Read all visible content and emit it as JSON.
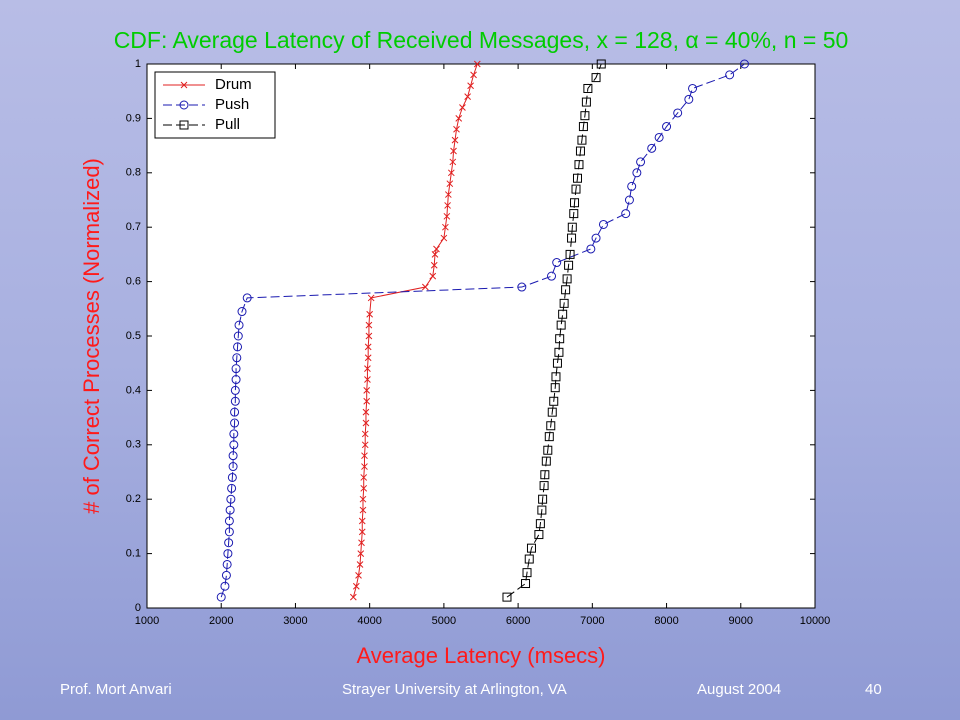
{
  "chart_data": {
    "type": "line",
    "title": "CDF: Average Latency of Received Messages, x = 128, α = 40%, n = 50",
    "xlabel": "Average Latency (msecs)",
    "ylabel": "# of Correct Processes (Normalized)",
    "xlim": [
      1000,
      10000
    ],
    "ylim": [
      0,
      1
    ],
    "xticks": [
      1000,
      2000,
      3000,
      4000,
      5000,
      6000,
      7000,
      8000,
      9000,
      10000
    ],
    "yticks": [
      0,
      0.1,
      0.2,
      0.3,
      0.4,
      0.5,
      0.6,
      0.7,
      0.8,
      0.9,
      1
    ],
    "legend": "upper left",
    "series": [
      {
        "name": "Drum",
        "color": "#e02020",
        "marker": "x",
        "linestyle": "solid",
        "x": [
          3780,
          3820,
          3850,
          3870,
          3880,
          3890,
          3900,
          3900,
          3910,
          3910,
          3920,
          3920,
          3930,
          3930,
          3940,
          3940,
          3950,
          3950,
          3960,
          3960,
          3970,
          3970,
          3980,
          3980,
          3990,
          3990,
          4000,
          4020,
          4750,
          4850,
          4870,
          4880,
          4900,
          5000,
          5020,
          5040,
          5050,
          5060,
          5080,
          5100,
          5120,
          5130,
          5150,
          5170,
          5200,
          5250,
          5320,
          5360,
          5400,
          5450
        ],
        "values": [
          0.02,
          0.04,
          0.06,
          0.08,
          0.1,
          0.12,
          0.14,
          0.16,
          0.18,
          0.2,
          0.22,
          0.24,
          0.26,
          0.28,
          0.3,
          0.32,
          0.34,
          0.36,
          0.38,
          0.4,
          0.42,
          0.44,
          0.46,
          0.48,
          0.5,
          0.52,
          0.54,
          0.57,
          0.59,
          0.61,
          0.63,
          0.65,
          0.66,
          0.68,
          0.7,
          0.72,
          0.74,
          0.76,
          0.78,
          0.8,
          0.82,
          0.84,
          0.86,
          0.88,
          0.9,
          0.92,
          0.94,
          0.96,
          0.98,
          1
        ]
      },
      {
        "name": "Push",
        "color": "#1a1ab0",
        "marker": "o",
        "linestyle": "dashed",
        "x": [
          2000,
          2050,
          2070,
          2080,
          2090,
          2100,
          2110,
          2110,
          2120,
          2130,
          2140,
          2150,
          2160,
          2160,
          2170,
          2170,
          2180,
          2180,
          2190,
          2190,
          2200,
          2200,
          2210,
          2220,
          2230,
          2240,
          2280,
          2350,
          6050,
          6450,
          6520,
          6980,
          7050,
          7150,
          7450,
          7500,
          7530,
          7600,
          7650,
          7800,
          7900,
          8000,
          8150,
          8300,
          8350,
          8850,
          9050
        ],
        "values": [
          0.02,
          0.04,
          0.06,
          0.08,
          0.1,
          0.12,
          0.14,
          0.16,
          0.18,
          0.2,
          0.22,
          0.24,
          0.26,
          0.28,
          0.3,
          0.32,
          0.34,
          0.36,
          0.38,
          0.4,
          0.42,
          0.44,
          0.46,
          0.48,
          0.5,
          0.52,
          0.545,
          0.57,
          0.59,
          0.61,
          0.635,
          0.66,
          0.68,
          0.705,
          0.725,
          0.75,
          0.775,
          0.8,
          0.82,
          0.845,
          0.865,
          0.885,
          0.91,
          0.935,
          0.955,
          0.98,
          1
        ]
      },
      {
        "name": "Pull",
        "color": "#000000",
        "marker": "s",
        "linestyle": "dashed",
        "x": [
          5850,
          6100,
          6120,
          6150,
          6180,
          6280,
          6300,
          6320,
          6330,
          6350,
          6360,
          6380,
          6400,
          6420,
          6440,
          6460,
          6480,
          6500,
          6510,
          6530,
          6550,
          6560,
          6580,
          6600,
          6620,
          6640,
          6660,
          6680,
          6700,
          6720,
          6730,
          6750,
          6760,
          6780,
          6800,
          6820,
          6840,
          6860,
          6880,
          6900,
          6920,
          6940,
          7050,
          7120
        ],
        "values": [
          0.02,
          0.045,
          0.065,
          0.09,
          0.11,
          0.135,
          0.155,
          0.18,
          0.2,
          0.225,
          0.245,
          0.27,
          0.29,
          0.315,
          0.335,
          0.36,
          0.38,
          0.405,
          0.425,
          0.45,
          0.47,
          0.495,
          0.52,
          0.54,
          0.56,
          0.585,
          0.605,
          0.63,
          0.65,
          0.68,
          0.7,
          0.725,
          0.745,
          0.77,
          0.79,
          0.815,
          0.84,
          0.86,
          0.885,
          0.905,
          0.93,
          0.955,
          0.975,
          1
        ]
      }
    ]
  },
  "footer": {
    "author": "Prof. Mort Anvari",
    "institution": "Strayer University at Arlington, VA",
    "date": "August 2004",
    "page": "40"
  }
}
